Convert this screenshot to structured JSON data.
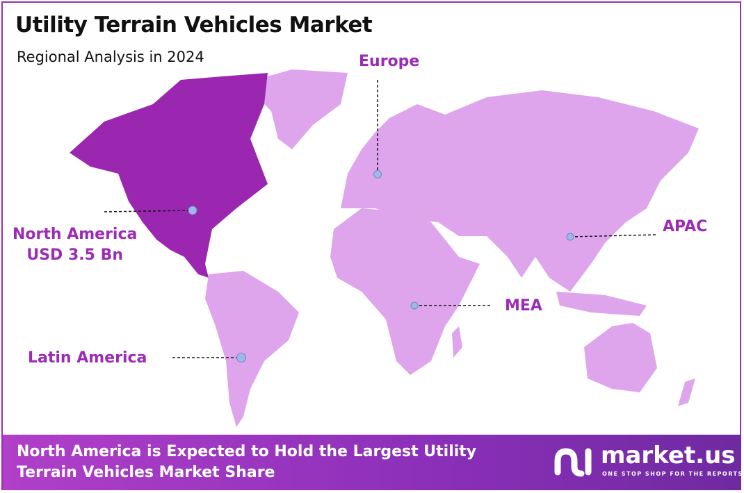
{
  "header": {
    "title": "Utility Terrain Vehicles Market",
    "subtitle": "Regional Analysis in 2024"
  },
  "colors": {
    "highlight": "#9b27b0",
    "land": "#dea5ec",
    "label": "#9c2bb5",
    "marker": "#9fb8e8"
  },
  "regions": [
    {
      "name": "North America",
      "value": "USD 3.5 Bn",
      "highlighted": true
    },
    {
      "name": "Europe"
    },
    {
      "name": "APAC"
    },
    {
      "name": "MEA"
    },
    {
      "name": "Latin America"
    }
  ],
  "footer": {
    "line1": "North America is Expected to Hold the Largest Utility",
    "line2": "Terrain Vehicles Market Share"
  },
  "logo": {
    "name": "market.us",
    "tagline": "ONE STOP SHOP FOR THE REPORTS"
  }
}
